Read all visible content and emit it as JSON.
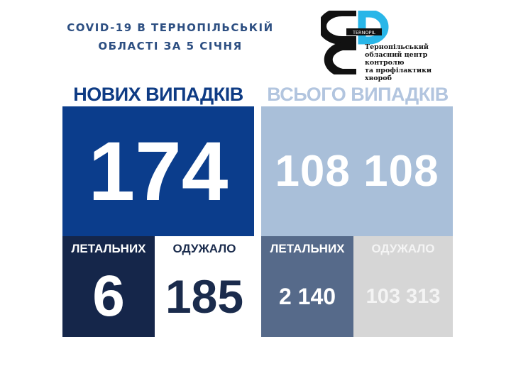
{
  "title": {
    "line1": "COVID-19 В ТЕРНОПІЛЬСЬКІЙ",
    "line2": "ОБЛАСТІ ЗА 5 СІЧНЯ"
  },
  "logo": {
    "badge": "TERNOPIL",
    "lines": [
      "Тернопільський",
      "обласний центр контролю",
      "та профілактики",
      "хвороб"
    ]
  },
  "new_cases": {
    "header": "НОВИХ ВИПАДКІВ",
    "value": "174",
    "deaths_label": "ЛЕТАЛЬНИХ",
    "deaths": "6",
    "recovered_label": "ОДУЖАЛО",
    "recovered": "185"
  },
  "total_cases": {
    "header": "ВСЬОГО ВИПАДКІВ",
    "value": "108 108",
    "deaths_label": "ЛЕТАЛЬНИХ",
    "deaths": "2 140",
    "recovered_label": "ОДУЖАЛО",
    "recovered": "103 313"
  },
  "colors": {
    "new": "#0b3d8c",
    "total": "#a9bfd9",
    "deaths_new": "#15264a",
    "deaths_total": "#566a8a",
    "recovered_total": "#d6d6d6",
    "logo_accent": "#29b6e8"
  }
}
